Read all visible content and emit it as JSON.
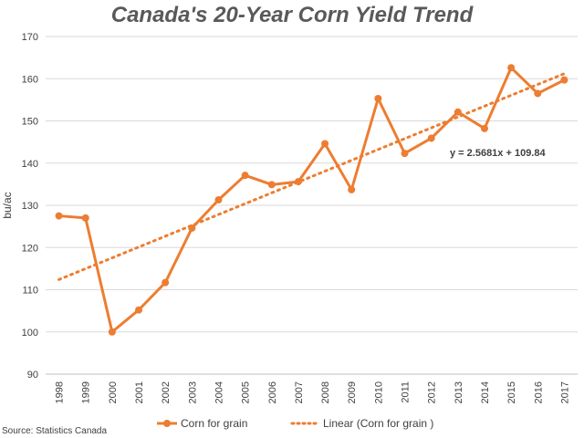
{
  "chart_data": {
    "type": "line",
    "title": "Canada's 20-Year Corn Yield Trend",
    "ylabel": "bu/ac",
    "xlabel": "",
    "ylim": [
      90,
      170
    ],
    "yticks": [
      90,
      100,
      110,
      120,
      130,
      140,
      150,
      160,
      170
    ],
    "categories": [
      "1998",
      "1999",
      "2000",
      "2001",
      "2002",
      "2003",
      "2004",
      "2005",
      "2006",
      "2007",
      "2008",
      "2009",
      "2010",
      "2011",
      "2012",
      "2013",
      "2014",
      "2015",
      "2016",
      "2017"
    ],
    "series": [
      {
        "name": "Corn for grain",
        "color": "#ED7D31",
        "style": "solid-markers",
        "values": [
          127.5,
          127.0,
          100.0,
          105.2,
          111.7,
          124.6,
          131.3,
          137.1,
          134.9,
          135.6,
          144.6,
          133.7,
          155.3,
          142.3,
          145.9,
          152.1,
          148.2,
          162.6,
          156.5,
          159.7
        ]
      },
      {
        "name": "Linear (Corn for grain )",
        "color": "#ED7D31",
        "style": "dotted",
        "slope": 2.5681,
        "intercept": 109.84
      }
    ],
    "annotations": [
      "y = 2.5681x + 109.84"
    ],
    "grid": true,
    "legend": "bottom",
    "source": "Source: Statistics Canada"
  }
}
